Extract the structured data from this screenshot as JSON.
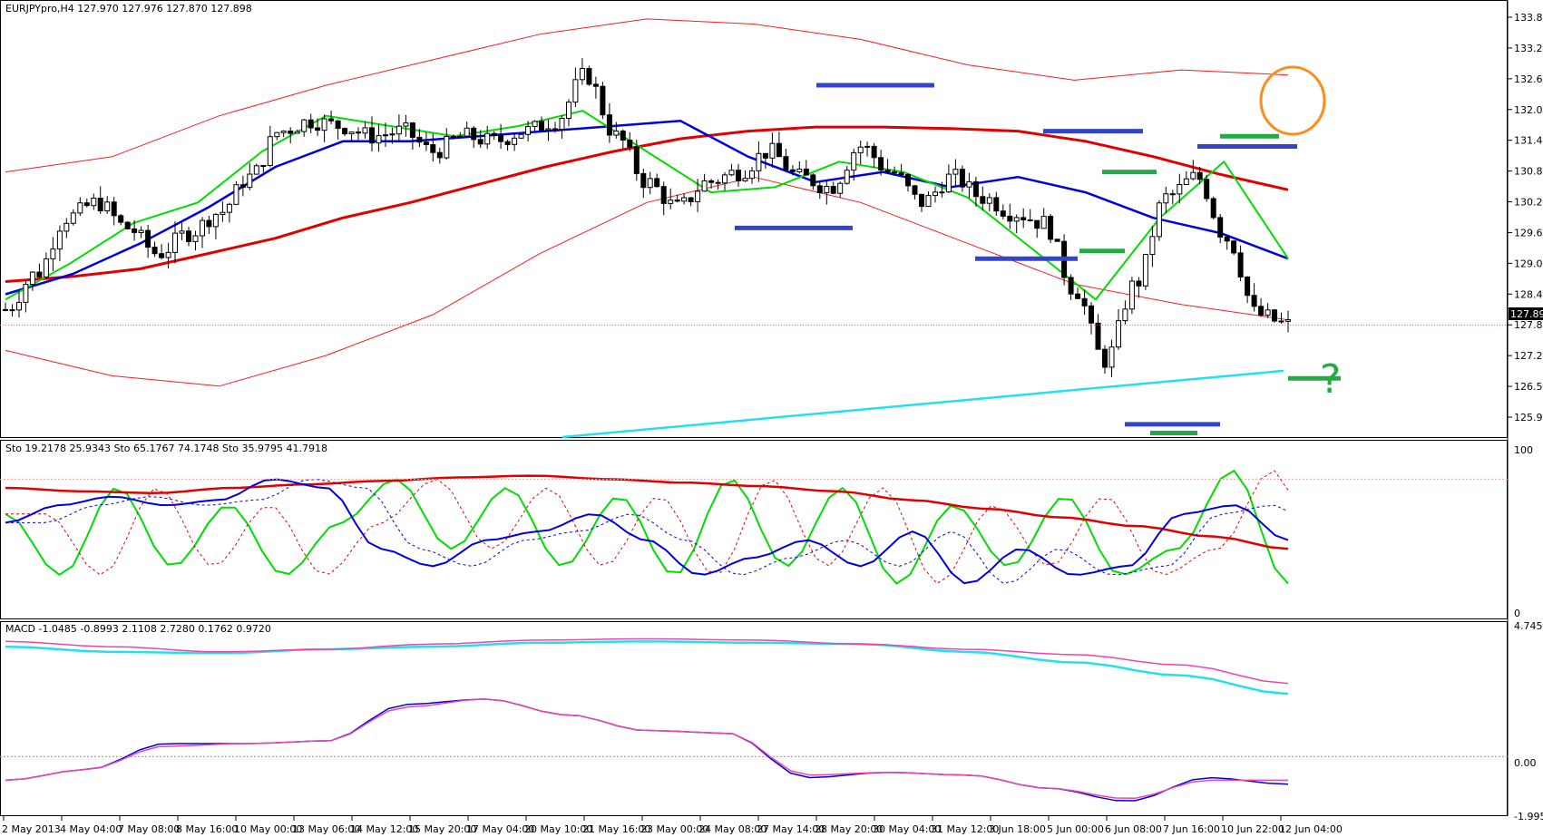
{
  "colors": {
    "background": "#ffffff",
    "bull_candle": "#ffffff",
    "bear_candle": "#000000",
    "ma_red": "#e00000",
    "bb_red": "#ff1a1a",
    "ma_blue": "#0000e0",
    "bb_blue": "#1f3fd0",
    "ma_green": "#00dd00",
    "trend_cyan": "#22e0f0",
    "level_blue": "#3344cc",
    "level_green": "#22aa44",
    "circle_orange": "#ff8c1a",
    "question_green": "#22aa44",
    "macd_cyan": "#22e0f0",
    "macd_magenta": "#ee44aa",
    "last_price_marker": "#000000"
  },
  "chart_data": [
    {
      "type": "candlestick",
      "title": "EURJPYpro,H4  127.970 127.976 127.870 127.898",
      "symbol": "EURJPYpro",
      "timeframe": "H4",
      "ohlc_header": [
        127.97,
        127.976,
        127.87,
        127.898
      ],
      "last_price": "127.898",
      "ylim": [
        125.7,
        134.2
      ],
      "y_ticks": [
        "133.855",
        "133.240",
        "132.640",
        "132.040",
        "131.440",
        "130.825",
        "130.225",
        "129.625",
        "129.010",
        "128.410",
        "127.810",
        "127.210",
        "126.595",
        "125.995"
      ],
      "x_labels": [
        "2 May 2013",
        "4 May 04:00",
        "7 May 08:00",
        "8 May 16:00",
        "10 May 00:00",
        "13 May 06:00",
        "14 May 12:00",
        "15 May 20:00",
        "17 May 04:00",
        "20 May 10:00",
        "21 May 16:00",
        "23 May 00:00",
        "24 May 08:00",
        "27 May 14:00",
        "28 May 20:00",
        "30 May 04:00",
        "31 May 12:00",
        "3 Jun 18:00",
        "5 Jun 00:00",
        "6 Jun 08:00",
        "7 Jun 16:00",
        "10 Jun 22:00",
        "12 Jun 04:00"
      ],
      "price_path": [
        128.2,
        128.9,
        130.0,
        130.3,
        129.8,
        129.3,
        129.7,
        130.1,
        130.8,
        131.7,
        131.9,
        131.8,
        131.6,
        131.7,
        131.3,
        131.6,
        131.5,
        131.7,
        131.9,
        132.8,
        131.6,
        130.7,
        130.2,
        130.7,
        130.9,
        131.3,
        130.8,
        130.6,
        131.4,
        130.9,
        130.3,
        130.8,
        130.4,
        130.1,
        129.9,
        128.6,
        127.2,
        128.7,
        130.4,
        130.8,
        129.6,
        128.1,
        127.9
      ],
      "series": [
        {
          "name": "MA slow (red)",
          "values": [
            128.75,
            128.85,
            129.0,
            129.3,
            129.6,
            130.0,
            130.3,
            130.65,
            131.0,
            131.3,
            131.55,
            131.7,
            131.78,
            131.78,
            131.75,
            131.7,
            131.5,
            131.2,
            130.85,
            130.55
          ]
        },
        {
          "name": "BB outer upper (red)",
          "values": [
            130.9,
            131.2,
            132.0,
            132.6,
            133.1,
            133.6,
            133.9,
            133.8,
            133.5,
            133.0,
            132.7,
            132.9,
            132.8
          ]
        },
        {
          "name": "BB outer lower (red)",
          "values": [
            127.4,
            126.9,
            126.7,
            127.3,
            128.1,
            129.3,
            130.3,
            130.8,
            130.3,
            129.5,
            128.7,
            128.3,
            128.0
          ]
        },
        {
          "name": "MA mid (blue)",
          "values": [
            128.5,
            128.9,
            129.5,
            130.2,
            131.0,
            131.5,
            131.5,
            131.6,
            131.7,
            131.8,
            131.9,
            131.2,
            130.7,
            130.9,
            130.6,
            130.8,
            130.5,
            130.0,
            129.7,
            129.2
          ]
        },
        {
          "name": "MA fast (green)",
          "values": [
            128.4,
            129.1,
            129.9,
            130.3,
            131.3,
            132.0,
            131.8,
            131.6,
            131.8,
            132.1,
            131.3,
            130.5,
            130.6,
            131.1,
            130.9,
            130.4,
            129.4,
            128.4,
            130.0,
            131.1,
            129.2
          ]
        },
        {
          "name": "Trendline (cyan)",
          "values": [
            125.7,
            127.0
          ]
        }
      ],
      "annotations": [
        {
          "kind": "level",
          "color": "blue",
          "price": 132.6
        },
        {
          "kind": "level",
          "color": "blue",
          "price": 129.8
        },
        {
          "kind": "level",
          "color": "blue",
          "price": 131.7
        },
        {
          "kind": "level",
          "color": "blue",
          "price": 129.2
        },
        {
          "kind": "level",
          "color": "blue",
          "price": 131.4
        },
        {
          "kind": "level",
          "color": "blue",
          "price": 125.95
        },
        {
          "kind": "level",
          "color": "green",
          "price": 130.9
        },
        {
          "kind": "level",
          "color": "green",
          "price": 129.35
        },
        {
          "kind": "level",
          "color": "green",
          "price": 131.6
        },
        {
          "kind": "level",
          "color": "green",
          "price": 125.78
        },
        {
          "kind": "level",
          "color": "green",
          "price": 126.85
        },
        {
          "kind": "circle",
          "color": "orange"
        },
        {
          "kind": "text",
          "text": "?",
          "color": "green"
        }
      ]
    },
    {
      "type": "line",
      "title": "Sto 19.2178 25.9343  Sto 65.1767 74.1748  Sto 35.9795 41.7918",
      "ylim": [
        0,
        100
      ],
      "y_ticks": [
        "100",
        "0"
      ],
      "series": [
        {
          "name": "Sto 19.2178 25.9343",
          "values": [
            60,
            25,
            75,
            30,
            65,
            25,
            55,
            80,
            40,
            75,
            30,
            70,
            25,
            80,
            30,
            75,
            20,
            65,
            30,
            70,
            25,
            40,
            85,
            20
          ]
        },
        {
          "name": "Sto 65.1767 74.1748",
          "values": [
            75,
            73,
            72,
            75,
            77,
            79,
            81,
            82,
            80,
            78,
            76,
            73,
            68,
            63,
            58,
            53,
            47,
            40
          ]
        },
        {
          "name": "Sto 35.9795 41.7918",
          "values": [
            55,
            65,
            70,
            65,
            68,
            80,
            75,
            40,
            30,
            45,
            50,
            60,
            45,
            25,
            35,
            45,
            30,
            50,
            20,
            40,
            25,
            30,
            60,
            65,
            45
          ]
        }
      ]
    },
    {
      "type": "line",
      "title": "MACD -1.0485 -0.8993 2.1108 2.7280 0.1762 0.9720",
      "ylim": [
        -2.2,
        5.0
      ],
      "y_ticks": [
        "4.7454",
        "0.00",
        "-1.9952"
      ],
      "series": [
        {
          "name": "MACD slow (cyan)",
          "values": [
            4.2,
            4.0,
            3.95,
            4.1,
            4.2,
            4.35,
            4.4,
            4.35,
            4.3,
            4.0,
            3.6,
            3.1,
            2.4
          ]
        },
        {
          "name": "MACD slow signal (magenta)",
          "values": [
            4.4,
            4.2,
            4.0,
            4.1,
            4.3,
            4.45,
            4.5,
            4.45,
            4.3,
            4.1,
            3.9,
            3.5,
            2.8
          ]
        },
        {
          "name": "MACD fast (blue)",
          "values": [
            -0.9,
            -0.5,
            0.5,
            0.5,
            0.6,
            2.0,
            2.2,
            1.6,
            1.0,
            0.9,
            -0.8,
            -0.6,
            -0.7,
            -1.2,
            -1.7,
            -0.8,
            -1.05
          ]
        },
        {
          "name": "MACD fast signal (magenta)",
          "values": [
            -0.9,
            -0.5,
            0.4,
            0.5,
            0.6,
            1.9,
            2.2,
            1.6,
            1.0,
            0.9,
            -0.7,
            -0.6,
            -0.7,
            -1.2,
            -1.6,
            -0.9,
            -0.9
          ]
        }
      ]
    }
  ]
}
